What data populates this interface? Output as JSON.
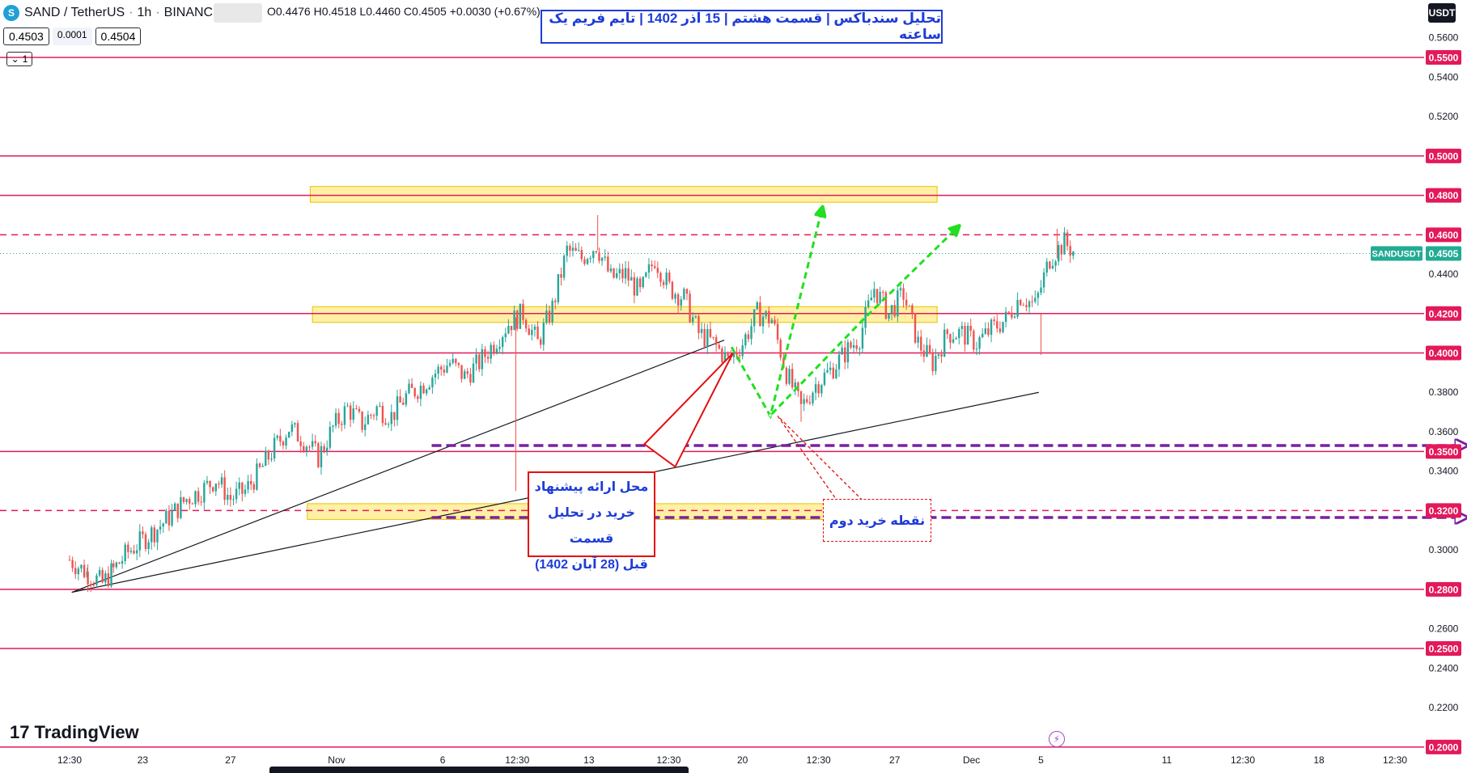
{
  "header": {
    "symbol": "SAND / TetherUS",
    "interval": "1h",
    "exchange": "BINANCE",
    "ohlc": "O0.4476 H0.4518 L0.4460 C0.4505 +0.0030 (+0.67%)",
    "bid": "0.4503",
    "spread": "0.0001",
    "ask": "0.4504",
    "indicator_count": "1"
  },
  "currency_button": "USDT",
  "title": "تحلیل سندباکس | قسمت هشتم | 15 آذر 1402 | تایم فریم یک ساعته",
  "annotations": {
    "first_buy": [
      "محل ارائه پیشنهاد",
      "خرید در تحلیل قسمت",
      "قبل (28 آبان 1402)"
    ],
    "second_buy": "نقطه خرید دوم"
  },
  "branding": "TradingView",
  "colors": {
    "up": "#26a69a",
    "down": "#ef5350",
    "levels": "#e3195a",
    "zone": "#ffe45c",
    "arrow": "#21e021",
    "target": "#7b1fa2",
    "note": "#1e3cd8",
    "last_price": "#22ab94"
  },
  "chart_data": {
    "type": "candlestick",
    "symbol_tag": "SANDUSDT",
    "last_price": 0.4505,
    "ylim": [
      0.195,
      0.573
    ],
    "y_ticks": [
      0.56,
      0.54,
      0.52,
      0.44,
      0.38,
      0.36,
      0.34,
      0.3,
      0.26,
      0.24,
      0.22
    ],
    "x_ticks": [
      {
        "label": "12:30",
        "t": 0
      },
      {
        "label": "23",
        "t": 1.0
      },
      {
        "label": "27",
        "t": 2.2
      },
      {
        "label": "Nov",
        "t": 3.65
      },
      {
        "label": "6",
        "t": 5.1
      },
      {
        "label": "12:30",
        "t": 6.12
      },
      {
        "label": "13",
        "t": 7.1
      },
      {
        "label": "12:30",
        "t": 8.19
      },
      {
        "label": "20",
        "t": 9.2
      },
      {
        "label": "12:30",
        "t": 10.24
      },
      {
        "label": "27",
        "t": 11.28
      },
      {
        "label": "Dec",
        "t": 12.33
      },
      {
        "label": "5",
        "t": 13.28
      },
      {
        "label": "11",
        "t": 15.0
      },
      {
        "label": "12:30",
        "t": 16.04
      },
      {
        "label": "18",
        "t": 17.08
      },
      {
        "label": "12:30",
        "t": 18.12
      }
    ],
    "levels": [
      {
        "price": 0.55,
        "style": "solid"
      },
      {
        "price": 0.5,
        "style": "solid"
      },
      {
        "price": 0.48,
        "style": "solid"
      },
      {
        "price": 0.46,
        "style": "dashed"
      },
      {
        "price": 0.42,
        "style": "solid"
      },
      {
        "price": 0.4,
        "style": "solid"
      },
      {
        "price": 0.35,
        "style": "solid"
      },
      {
        "price": 0.32,
        "style": "dashed"
      },
      {
        "price": 0.28,
        "style": "solid"
      },
      {
        "price": 0.25,
        "style": "solid"
      },
      {
        "price": 0.2,
        "style": "solid"
      }
    ],
    "zones": [
      {
        "t0": 3.29,
        "t1": 11.86,
        "low": 0.4765,
        "high": 0.4845
      },
      {
        "t0": 3.32,
        "t1": 11.86,
        "low": 0.4155,
        "high": 0.4235
      },
      {
        "t0": 3.25,
        "t1": 10.55,
        "low": 0.3155,
        "high": 0.3235
      }
    ],
    "trendlines": [
      {
        "t0": 0.03,
        "p0": 0.2785,
        "t1": 8.95,
        "p1": 0.4065
      },
      {
        "t0": 0.03,
        "p0": 0.2785,
        "t1": 13.25,
        "p1": 0.38
      }
    ],
    "target_arrows": [
      {
        "t0": 4.95,
        "t1": 19.03,
        "price": 0.353
      },
      {
        "t0": 4.95,
        "t1": 19.03,
        "price": 0.3165
      }
    ],
    "green_path_1": [
      [
        9.05,
        0.403
      ],
      [
        9.58,
        0.368
      ],
      [
        10.28,
        0.472
      ]
    ],
    "green_path_2": [
      [
        9.6,
        0.369
      ],
      [
        10.85,
        0.417
      ],
      [
        12.12,
        0.463
      ]
    ],
    "red_pointer": [
      [
        9.07,
        0.4
      ],
      [
        8.08,
        0.357
      ]
    ],
    "dashed_pointer": [
      [
        9.68,
        0.368
      ],
      [
        10.86,
        0.322
      ]
    ],
    "series": [
      {
        "t": 0.0,
        "close": 0.295
      },
      {
        "t": 0.25,
        "close": 0.288
      },
      {
        "t": 0.45,
        "close": 0.283
      },
      {
        "t": 0.6,
        "close": 0.29
      },
      {
        "t": 0.8,
        "close": 0.299
      },
      {
        "t": 1.0,
        "close": 0.305
      },
      {
        "t": 1.2,
        "close": 0.311
      },
      {
        "t": 1.4,
        "close": 0.318
      },
      {
        "t": 1.6,
        "close": 0.326
      },
      {
        "t": 1.8,
        "close": 0.33
      },
      {
        "t": 2.0,
        "close": 0.336
      },
      {
        "t": 2.2,
        "close": 0.326
      },
      {
        "t": 2.4,
        "close": 0.33
      },
      {
        "t": 2.6,
        "close": 0.34
      },
      {
        "t": 2.8,
        "close": 0.352
      },
      {
        "t": 3.0,
        "close": 0.362
      },
      {
        "t": 3.2,
        "close": 0.356
      },
      {
        "t": 3.4,
        "close": 0.347
      },
      {
        "t": 3.6,
        "close": 0.362
      },
      {
        "t": 3.8,
        "close": 0.372
      },
      {
        "t": 4.0,
        "close": 0.364
      },
      {
        "t": 4.2,
        "close": 0.372
      },
      {
        "t": 4.4,
        "close": 0.368
      },
      {
        "t": 4.6,
        "close": 0.378
      },
      {
        "t": 4.8,
        "close": 0.383
      },
      {
        "t": 5.0,
        "close": 0.39
      },
      {
        "t": 5.2,
        "close": 0.395
      },
      {
        "t": 5.4,
        "close": 0.388
      },
      {
        "t": 5.6,
        "close": 0.395
      },
      {
        "t": 5.8,
        "close": 0.405
      },
      {
        "t": 6.0,
        "close": 0.415
      },
      {
        "t": 6.2,
        "close": 0.42
      },
      {
        "t": 6.4,
        "close": 0.405
      },
      {
        "t": 6.6,
        "close": 0.423
      },
      {
        "t": 6.8,
        "close": 0.452
      },
      {
        "t": 7.0,
        "close": 0.448
      },
      {
        "t": 7.2,
        "close": 0.455
      },
      {
        "t": 7.4,
        "close": 0.438
      },
      {
        "t": 7.6,
        "close": 0.44
      },
      {
        "t": 7.8,
        "close": 0.43
      },
      {
        "t": 8.0,
        "close": 0.448
      },
      {
        "t": 8.2,
        "close": 0.433
      },
      {
        "t": 8.4,
        "close": 0.428
      },
      {
        "t": 8.6,
        "close": 0.41
      },
      {
        "t": 8.8,
        "close": 0.405
      },
      {
        "t": 9.0,
        "close": 0.396
      },
      {
        "t": 9.2,
        "close": 0.405
      },
      {
        "t": 9.4,
        "close": 0.42
      },
      {
        "t": 9.6,
        "close": 0.417
      },
      {
        "t": 9.8,
        "close": 0.39
      },
      {
        "t": 10.0,
        "close": 0.372
      },
      {
        "t": 10.2,
        "close": 0.384
      },
      {
        "t": 10.4,
        "close": 0.391
      },
      {
        "t": 10.6,
        "close": 0.4
      },
      {
        "t": 10.8,
        "close": 0.408
      },
      {
        "t": 11.0,
        "close": 0.433
      },
      {
        "t": 11.2,
        "close": 0.42
      },
      {
        "t": 11.4,
        "close": 0.43
      },
      {
        "t": 11.6,
        "close": 0.405
      },
      {
        "t": 11.8,
        "close": 0.395
      },
      {
        "t": 12.0,
        "close": 0.41
      },
      {
        "t": 12.2,
        "close": 0.41
      },
      {
        "t": 12.4,
        "close": 0.405
      },
      {
        "t": 12.6,
        "close": 0.412
      },
      {
        "t": 12.8,
        "close": 0.417
      },
      {
        "t": 13.0,
        "close": 0.429
      },
      {
        "t": 13.2,
        "close": 0.424
      },
      {
        "t": 13.4,
        "close": 0.448
      },
      {
        "t": 13.6,
        "close": 0.456
      },
      {
        "t": 13.75,
        "close": 0.4505
      }
    ]
  }
}
